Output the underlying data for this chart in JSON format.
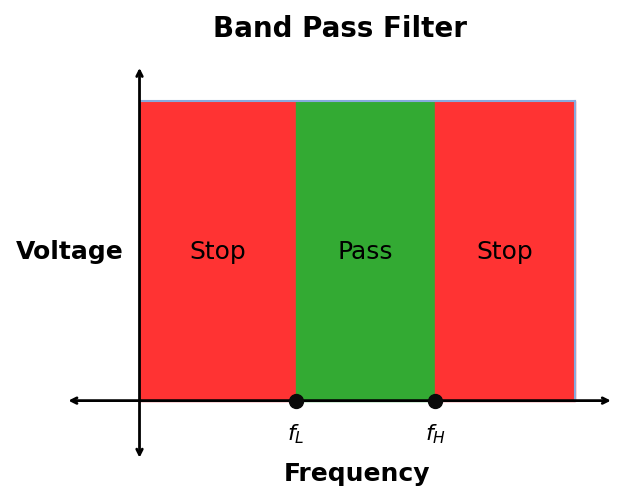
{
  "title": "Band Pass Filter",
  "xlabel": "Frequency",
  "ylabel": "Voltage",
  "title_fontsize": 20,
  "label_fontsize": 18,
  "text_fontsize": 18,
  "freq_label_fontsize": 16,
  "stop_color": "#FF3333",
  "pass_color": "#33AA33",
  "border_color": "#88AADD",
  "stop_label": "Stop",
  "pass_label": "Pass",
  "fL_label": "$f_L$",
  "fH_label": "$f_H$",
  "fL": 0.36,
  "fH": 0.68,
  "xmin": 0.0,
  "xmax": 1.0,
  "ymin": 0.0,
  "ymax": 1.0,
  "background_color": "#ffffff",
  "dot_color": "#0a0a0a",
  "dot_size": 100
}
